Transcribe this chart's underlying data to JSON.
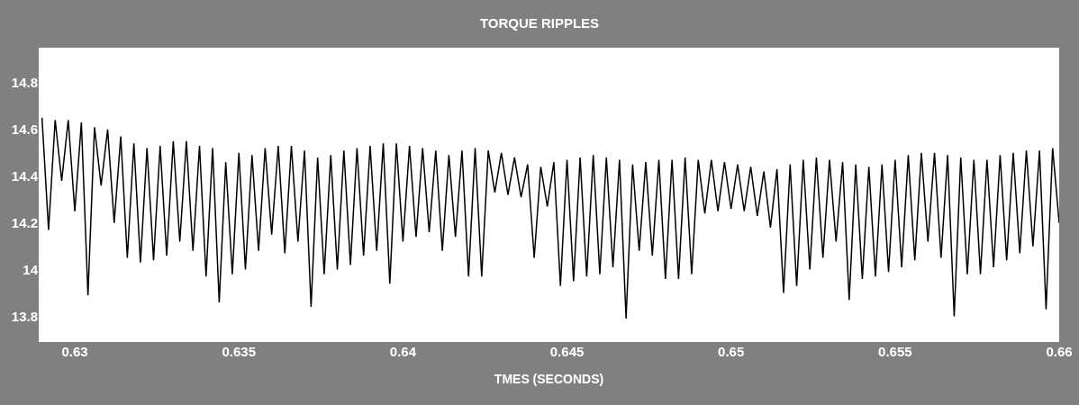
{
  "chart_data": {
    "type": "line",
    "title": "TORQUE RIPPLES",
    "xlabel": "TMES (SECONDS)",
    "x": [
      0.629,
      0.6292,
      0.6294,
      0.6296,
      0.6298,
      0.63,
      0.6302,
      0.6304,
      0.6306,
      0.6308,
      0.631,
      0.6312,
      0.6314,
      0.6316,
      0.6318,
      0.632,
      0.6322,
      0.6324,
      0.6326,
      0.6328,
      0.633,
      0.6332,
      0.6334,
      0.6336,
      0.6338,
      0.634,
      0.6342,
      0.6344,
      0.6346,
      0.6348,
      0.635,
      0.6352,
      0.6354,
      0.6356,
      0.6358,
      0.636,
      0.6362,
      0.6364,
      0.6366,
      0.6368,
      0.637,
      0.6372,
      0.6374,
      0.6376,
      0.6378,
      0.638,
      0.6382,
      0.6384,
      0.6386,
      0.6388,
      0.639,
      0.6392,
      0.6394,
      0.6396,
      0.6398,
      0.64,
      0.6402,
      0.6404,
      0.6406,
      0.6408,
      0.641,
      0.6412,
      0.6414,
      0.6416,
      0.6418,
      0.642,
      0.6422,
      0.6424,
      0.6426,
      0.6428,
      0.643,
      0.6432,
      0.6434,
      0.6436,
      0.6438,
      0.644,
      0.6442,
      0.6444,
      0.6446,
      0.6448,
      0.645,
      0.6452,
      0.6454,
      0.6456,
      0.6458,
      0.646,
      0.6462,
      0.6464,
      0.6466,
      0.6468,
      0.647,
      0.6472,
      0.6474,
      0.6476,
      0.6478,
      0.648,
      0.6482,
      0.6484,
      0.6486,
      0.6488,
      0.649,
      0.6492,
      0.6494,
      0.6496,
      0.6498,
      0.65,
      0.6502,
      0.6504,
      0.6506,
      0.6508,
      0.651,
      0.6512,
      0.6514,
      0.6516,
      0.6518,
      0.652,
      0.6522,
      0.6524,
      0.6526,
      0.6528,
      0.653,
      0.6532,
      0.6534,
      0.6536,
      0.6538,
      0.654,
      0.6542,
      0.6544,
      0.6546,
      0.6548,
      0.655,
      0.6552,
      0.6554,
      0.6556,
      0.6558,
      0.656,
      0.6562,
      0.6564,
      0.6566,
      0.6568,
      0.657,
      0.6572,
      0.6574,
      0.6576,
      0.6578,
      0.658,
      0.6582,
      0.6584,
      0.6586,
      0.6588,
      0.659,
      0.6592,
      0.6594,
      0.6596,
      0.6598,
      0.66
    ],
    "series": [
      {
        "color": "#000000",
        "values": [
          14.65,
          14.17,
          14.64,
          14.38,
          14.64,
          14.25,
          14.63,
          13.89,
          14.61,
          14.36,
          14.6,
          14.2,
          14.57,
          14.05,
          14.54,
          14.03,
          14.52,
          14.04,
          14.53,
          14.06,
          14.55,
          14.12,
          14.55,
          14.08,
          14.53,
          13.97,
          14.52,
          13.86,
          14.46,
          13.98,
          14.5,
          14.0,
          14.49,
          14.08,
          14.52,
          14.15,
          14.53,
          14.07,
          14.53,
          14.12,
          14.51,
          13.84,
          14.48,
          13.98,
          14.49,
          14.0,
          14.51,
          14.02,
          14.52,
          14.06,
          14.53,
          14.08,
          14.54,
          13.94,
          14.54,
          14.12,
          14.53,
          14.14,
          14.52,
          14.16,
          14.51,
          14.08,
          14.49,
          14.14,
          14.51,
          13.97,
          14.52,
          13.97,
          14.51,
          14.33,
          14.5,
          14.32,
          14.48,
          14.31,
          14.45,
          14.05,
          14.44,
          14.27,
          14.46,
          13.93,
          14.47,
          13.95,
          14.48,
          13.97,
          14.49,
          13.98,
          14.48,
          14.01,
          14.47,
          13.79,
          14.45,
          14.08,
          14.46,
          14.06,
          14.47,
          13.96,
          14.47,
          13.96,
          14.48,
          13.98,
          14.47,
          14.24,
          14.47,
          14.25,
          14.46,
          14.26,
          14.45,
          14.25,
          14.44,
          14.23,
          14.42,
          14.18,
          14.43,
          13.9,
          14.45,
          13.93,
          14.47,
          14.0,
          14.48,
          14.05,
          14.47,
          14.12,
          14.46,
          13.87,
          14.45,
          13.96,
          14.44,
          13.97,
          14.45,
          13.99,
          14.47,
          14.01,
          14.49,
          14.04,
          14.5,
          14.12,
          14.5,
          14.05,
          14.49,
          13.8,
          14.48,
          13.98,
          14.47,
          13.98,
          14.47,
          14.01,
          14.49,
          14.04,
          14.5,
          14.07,
          14.51,
          14.1,
          14.51,
          13.83,
          14.52,
          14.2
        ]
      }
    ],
    "xlim": [
      0.6289,
      0.66
    ],
    "xticks": [
      0.63,
      0.635,
      0.64,
      0.645,
      0.65,
      0.655,
      0.66
    ],
    "ylim": [
      13.69,
      14.95
    ],
    "yticks": [
      13.8,
      14,
      14.2,
      14.4,
      14.6,
      14.8
    ],
    "grid": false,
    "marker": "none",
    "line_style": "solid"
  }
}
